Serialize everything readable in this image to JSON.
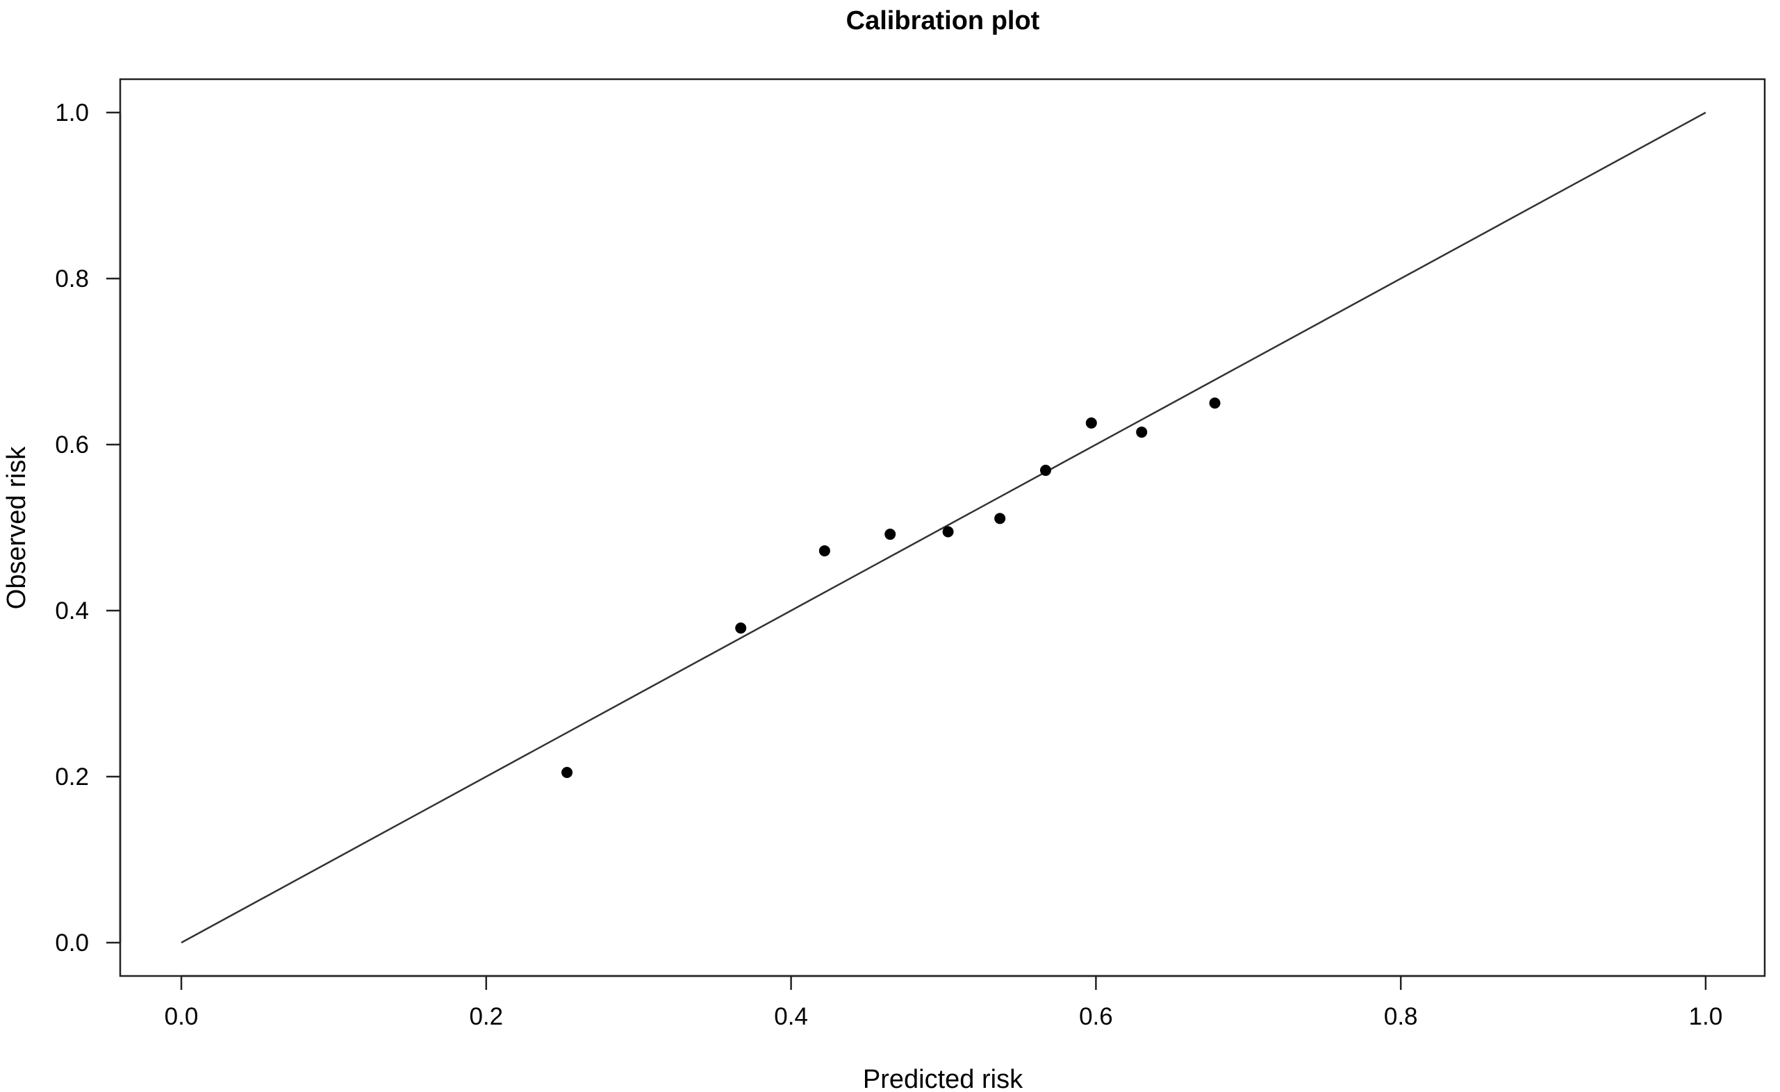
{
  "chart_data": {
    "type": "scatter",
    "title": "Calibration plot",
    "xlabel": "Predicted risk",
    "ylabel": "Observed risk",
    "xlim": [
      0,
      1
    ],
    "ylim": [
      0,
      1
    ],
    "xticks": [
      "0.0",
      "0.2",
      "0.4",
      "0.6",
      "0.8",
      "1.0"
    ],
    "yticks": [
      "0.0",
      "0.2",
      "0.4",
      "0.6",
      "0.8",
      "1.0"
    ],
    "grid": false,
    "reference_line": {
      "x": [
        0,
        1
      ],
      "y": [
        0,
        1
      ]
    },
    "points": [
      {
        "x": 0.253,
        "y": 0.205
      },
      {
        "x": 0.367,
        "y": 0.379
      },
      {
        "x": 0.422,
        "y": 0.472
      },
      {
        "x": 0.465,
        "y": 0.492
      },
      {
        "x": 0.503,
        "y": 0.495
      },
      {
        "x": 0.537,
        "y": 0.511
      },
      {
        "x": 0.567,
        "y": 0.569
      },
      {
        "x": 0.597,
        "y": 0.626
      },
      {
        "x": 0.63,
        "y": 0.615
      },
      {
        "x": 0.678,
        "y": 0.65
      }
    ],
    "colors": {
      "points": "#000000",
      "line": "#333333",
      "frame": "#222222"
    }
  }
}
